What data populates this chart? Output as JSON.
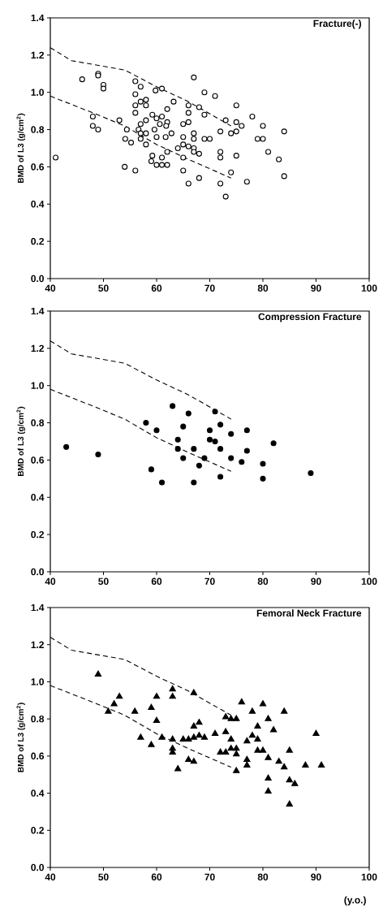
{
  "chart_data": [
    {
      "type": "scatter",
      "title": "Fracture(-)",
      "ylabel": "BMD of L3 (g/cm$^{2}$)",
      "xlim": [
        40,
        100
      ],
      "xticks": [
        40,
        50,
        60,
        70,
        80,
        90,
        100
      ],
      "ylim": [
        0,
        1.4
      ],
      "yticks": [
        {
          "value": 0,
          "label": "0.0"
        },
        {
          "value": 0.2,
          "label": "0.2"
        },
        {
          "value": 0.4,
          "label": "0.4"
        },
        {
          "value": 0.6,
          "label": "0.6"
        },
        {
          "value": 0.8,
          "label": "0.8"
        },
        {
          "value": 1.0,
          "label": "1.0"
        },
        {
          "value": 1.2,
          "label": "1.2"
        },
        {
          "value": 1.4,
          "label": "1.4"
        }
      ],
      "series": [
        {
          "type": "line",
          "color": "#000000",
          "marker": "none",
          "line_style": "dashed",
          "x": [
            40,
            44,
            54,
            60,
            66,
            74
          ],
          "values": [
            1.24,
            1.17,
            1.12,
            1.03,
            0.95,
            0.82
          ]
        },
        {
          "type": "line",
          "color": "#000000",
          "marker": "none",
          "line_style": "dashed",
          "x": [
            40,
            48,
            54,
            60,
            66,
            74
          ],
          "values": [
            0.98,
            0.89,
            0.82,
            0.72,
            0.64,
            0.54
          ]
        },
        {
          "color": "#ffffff",
          "marker": "circle",
          "x": [
            41,
            46,
            49,
            49,
            50,
            50,
            48,
            48,
            49,
            53,
            54.4,
            54.1,
            55.2,
            54,
            56,
            56,
            57,
            56,
            57,
            58,
            56,
            58,
            56,
            56.6,
            57,
            58,
            57,
            58,
            57,
            58,
            59.2,
            60,
            59.6,
            60,
            59.8,
            61,
            61,
            60.6,
            62,
            62,
            61.8,
            61.7,
            62.8,
            63.2,
            59.2,
            59,
            60,
            61,
            61,
            62,
            62,
            64,
            65,
            65,
            65,
            65,
            66,
            66,
            66,
            65,
            66,
            67,
            67,
            67,
            67,
            68,
            66,
            68,
            67,
            68,
            69,
            69,
            69,
            70,
            71,
            72,
            72,
            72,
            72,
            73,
            73,
            74,
            74,
            75,
            75,
            75,
            76,
            75,
            77,
            78,
            79,
            80,
            80,
            81,
            83,
            84,
            84
          ],
          "values": [
            0.65,
            1.07,
            1.1,
            1.09,
            1.04,
            1.02,
            0.87,
            0.82,
            0.8,
            0.85,
            0.8,
            0.75,
            0.73,
            0.6,
            0.58,
            1.06,
            1.03,
            0.99,
            0.95,
            0.96,
            0.93,
            0.93,
            0.89,
            0.8,
            0.83,
            0.85,
            0.78,
            0.78,
            0.75,
            0.72,
            0.88,
            0.86,
            0.8,
            0.76,
            1.01,
            1.02,
            0.87,
            0.83,
            0.91,
            0.84,
            0.82,
            0.76,
            0.78,
            0.95,
            0.66,
            0.63,
            0.61,
            0.65,
            0.61,
            0.61,
            0.68,
            0.7,
            0.65,
            0.58,
            0.76,
            0.83,
            0.84,
            0.93,
            0.89,
            0.72,
            0.71,
            0.78,
            0.75,
            0.7,
            0.68,
            0.67,
            0.51,
            0.54,
            1.08,
            0.92,
            1.0,
            0.88,
            0.75,
            0.75,
            0.98,
            0.79,
            0.68,
            0.65,
            0.51,
            0.44,
            0.85,
            0.78,
            0.57,
            0.93,
            0.84,
            0.79,
            0.82,
            0.66,
            0.52,
            0.87,
            0.75,
            0.82,
            0.75,
            0.68,
            0.64,
            0.79,
            0.55
          ]
        }
      ]
    },
    {
      "type": "scatter",
      "title": "Compression Fracture",
      "ylabel": "BMD of L3 (g/cm$^{2}$)",
      "xlim": [
        40,
        100
      ],
      "xticks": [
        40,
        50,
        60,
        70,
        80,
        90,
        100
      ],
      "ylim": [
        0,
        1.4
      ],
      "yticks": [
        {
          "value": 0,
          "label": "0.0"
        },
        {
          "value": 0.2,
          "label": "0.2"
        },
        {
          "value": 0.4,
          "label": "0.4"
        },
        {
          "value": 0.6,
          "label": "0.6"
        },
        {
          "value": 0.8,
          "label": "0.8"
        },
        {
          "value": 1.0,
          "label": "1.0"
        },
        {
          "value": 1.2,
          "label": "1.2"
        },
        {
          "value": 1.4,
          "label": "1.4"
        }
      ],
      "series": [
        {
          "type": "line",
          "color": "#000000",
          "marker": "none",
          "line_style": "dashed",
          "x": [
            40,
            44,
            54,
            60,
            66,
            74
          ],
          "values": [
            1.24,
            1.17,
            1.12,
            1.03,
            0.95,
            0.82
          ]
        },
        {
          "type": "line",
          "color": "#000000",
          "marker": "none",
          "line_style": "dashed",
          "x": [
            40,
            48,
            54,
            60,
            66,
            74
          ],
          "values": [
            0.98,
            0.89,
            0.82,
            0.72,
            0.64,
            0.54
          ]
        },
        {
          "color": "#000000",
          "marker": "circle",
          "x": [
            43,
            49,
            58,
            60,
            59,
            61,
            63,
            64,
            64,
            65,
            65,
            66,
            67,
            67,
            68,
            69,
            70,
            70,
            71,
            71,
            72,
            72,
            72,
            74,
            74,
            76,
            77,
            77,
            80,
            80,
            82,
            89
          ],
          "values": [
            0.67,
            0.63,
            0.8,
            0.76,
            0.55,
            0.48,
            0.89,
            0.71,
            0.66,
            0.78,
            0.61,
            0.85,
            0.66,
            0.48,
            0.57,
            0.61,
            0.76,
            0.71,
            0.7,
            0.86,
            0.79,
            0.66,
            0.51,
            0.74,
            0.61,
            0.59,
            0.76,
            0.65,
            0.58,
            0.5,
            0.69,
            0.53
          ]
        }
      ]
    },
    {
      "type": "scatter",
      "title": "Femoral Neck Fracture",
      "xlabel": "(y.o.)",
      "ylabel": "BMD of L3 (g/cm$^{2}$)",
      "xlim": [
        40,
        100
      ],
      "xticks": [
        40,
        50,
        60,
        70,
        80,
        90,
        100
      ],
      "ylim": [
        0,
        1.4
      ],
      "yticks": [
        {
          "value": 0,
          "label": "0.0"
        },
        {
          "value": 0.2,
          "label": "0.2"
        },
        {
          "value": 0.4,
          "label": "0.4"
        },
        {
          "value": 0.6,
          "label": "0.6"
        },
        {
          "value": 0.8,
          "label": "0.8"
        },
        {
          "value": 1.0,
          "label": "1.0"
        },
        {
          "value": 1.2,
          "label": "1.2"
        },
        {
          "value": 1.4,
          "label": "1.4"
        }
      ],
      "series": [
        {
          "type": "line",
          "color": "#000000",
          "marker": "none",
          "line_style": "dashed",
          "x": [
            40,
            44,
            54,
            60,
            66,
            74
          ],
          "values": [
            1.24,
            1.17,
            1.12,
            1.03,
            0.95,
            0.82
          ]
        },
        {
          "type": "line",
          "color": "#000000",
          "marker": "none",
          "line_style": "dashed",
          "x": [
            40,
            48,
            54,
            60,
            66,
            74
          ],
          "values": [
            0.98,
            0.89,
            0.82,
            0.72,
            0.64,
            0.54
          ]
        },
        {
          "color": "#000000",
          "marker": "triangle",
          "x": [
            49,
            50.9,
            52,
            53,
            55.9,
            57,
            59,
            59,
            60,
            60,
            61,
            63,
            63,
            63,
            63,
            63,
            64,
            65,
            66,
            66,
            67,
            67,
            67,
            67,
            68,
            68,
            69,
            71,
            72,
            73,
            73,
            73,
            74,
            74,
            74,
            75,
            75,
            75,
            75,
            76,
            77,
            77,
            77,
            78,
            78,
            79,
            79,
            79,
            80,
            80,
            81,
            81,
            81,
            81,
            82,
            83,
            84,
            84,
            85,
            85,
            86,
            85,
            88,
            90,
            91
          ],
          "values": [
            1.04,
            0.84,
            0.88,
            0.92,
            0.84,
            0.7,
            0.66,
            0.86,
            0.92,
            0.79,
            0.7,
            0.96,
            0.92,
            0.69,
            0.64,
            0.62,
            0.53,
            0.69,
            0.69,
            0.58,
            0.94,
            0.76,
            0.7,
            0.57,
            0.78,
            0.71,
            0.7,
            0.72,
            0.62,
            0.81,
            0.73,
            0.62,
            0.8,
            0.69,
            0.64,
            0.8,
            0.64,
            0.61,
            0.52,
            0.89,
            0.68,
            0.58,
            0.55,
            0.84,
            0.71,
            0.76,
            0.69,
            0.63,
            0.88,
            0.63,
            0.8,
            0.59,
            0.48,
            0.41,
            0.74,
            0.57,
            0.84,
            0.54,
            0.63,
            0.47,
            0.45,
            0.34,
            0.55,
            0.72,
            0.55
          ]
        }
      ]
    }
  ]
}
